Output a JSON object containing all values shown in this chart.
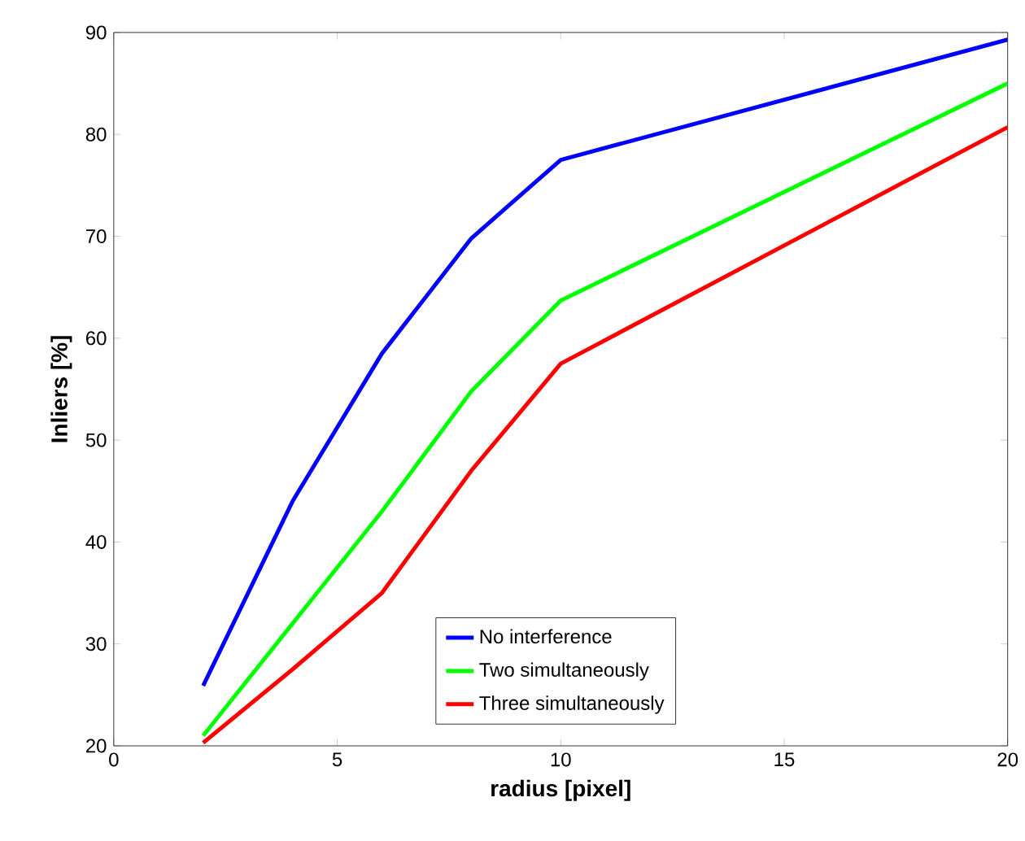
{
  "chart_data": {
    "type": "line",
    "xlabel": "radius [pixel]",
    "ylabel": "Inliers [%]",
    "xlim": [
      0,
      20
    ],
    "ylim": [
      20,
      90
    ],
    "xticks": [
      0,
      5,
      10,
      15,
      20
    ],
    "yticks": [
      20,
      30,
      40,
      50,
      60,
      70,
      80,
      90
    ],
    "x": [
      2,
      4,
      6,
      8,
      10,
      20
    ],
    "legend": "bottom right",
    "marker": "none",
    "line_style": "solid",
    "grid": false,
    "series": [
      {
        "name": "No interference",
        "color": "#0000ff",
        "values": [
          25.9,
          44,
          58.5,
          69.8,
          77.5,
          89.3
        ]
      },
      {
        "name": "Two simultaneously",
        "color": "#00ff00",
        "values": [
          21,
          32,
          43,
          54.8,
          63.7,
          85
        ]
      },
      {
        "name": "Three simultaneously",
        "color": "#ff0000",
        "values": [
          20.3,
          27.5,
          35,
          47,
          57.5,
          80.7
        ]
      }
    ]
  }
}
